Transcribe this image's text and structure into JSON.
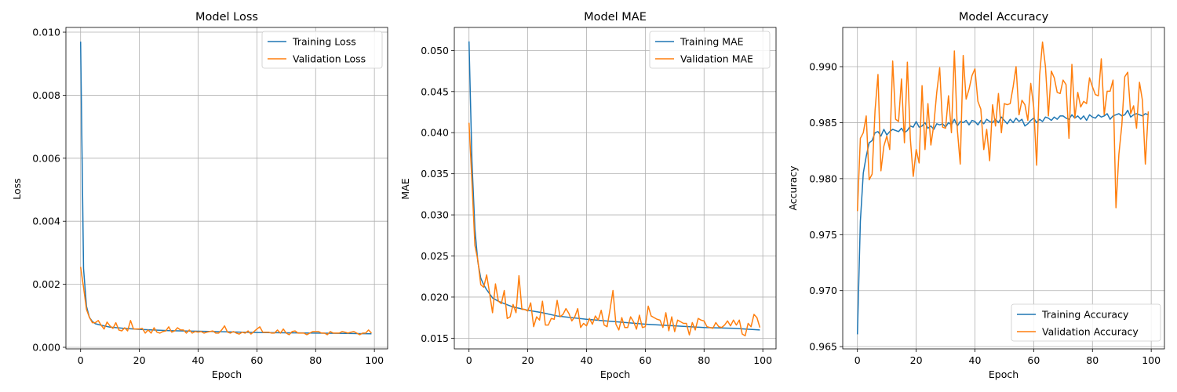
{
  "chart_data": [
    {
      "type": "line",
      "title": "Model Loss",
      "xlabel": "Epoch",
      "ylabel": "Loss",
      "xlim": [
        -5,
        104.5
      ],
      "ylim": [
        -5e-05,
        0.01015
      ],
      "xticks": [
        0,
        20,
        40,
        60,
        80,
        100
      ],
      "yticks": [
        0.0,
        0.002,
        0.004,
        0.006,
        0.008,
        0.01
      ],
      "xtick_labels": [
        "0",
        "20",
        "40",
        "60",
        "80",
        "100"
      ],
      "ytick_labels": [
        "0.000",
        "0.002",
        "0.004",
        "0.006",
        "0.008",
        "0.010"
      ],
      "grid": true,
      "legend_position": "upper right",
      "series": [
        {
          "name": "Training Loss",
          "color": "#1f77b4",
          "x": [
            0,
            1,
            2,
            3,
            4,
            5,
            7,
            10,
            15,
            20,
            30,
            40,
            50,
            60,
            70,
            80,
            90,
            99
          ],
          "y": [
            0.0097,
            0.0025,
            0.0013,
            0.00095,
            0.00082,
            0.00075,
            0.0007,
            0.00064,
            0.0006,
            0.00057,
            0.00053,
            0.00051,
            0.00049,
            0.00047,
            0.00046,
            0.00045,
            0.00044,
            0.00043
          ]
        },
        {
          "name": "Validation Loss",
          "color": "#ff7f0e",
          "x": [
            0,
            1,
            2,
            3,
            4,
            5,
            6,
            7,
            8,
            9,
            10,
            11,
            12,
            13,
            14,
            15,
            16,
            17,
            18,
            19,
            20,
            21,
            22,
            23,
            24,
            25,
            26,
            27,
            28,
            29,
            30,
            31,
            32,
            33,
            34,
            35,
            36,
            37,
            38,
            39,
            40,
            41,
            42,
            43,
            44,
            45,
            46,
            47,
            48,
            49,
            50,
            51,
            52,
            53,
            54,
            55,
            56,
            57,
            58,
            59,
            60,
            61,
            62,
            63,
            64,
            65,
            66,
            67,
            68,
            69,
            70,
            71,
            72,
            73,
            74,
            75,
            76,
            77,
            78,
            79,
            80,
            81,
            82,
            83,
            84,
            85,
            86,
            87,
            88,
            89,
            90,
            91,
            92,
            93,
            94,
            95,
            96,
            97,
            98,
            99
          ],
          "y": [
            0.00255,
            0.0019,
            0.0012,
            0.00095,
            0.00078,
            0.00078,
            0.00085,
            0.0007,
            0.00058,
            0.0008,
            0.00068,
            0.0006,
            0.00078,
            0.00055,
            0.00052,
            0.00062,
            0.00052,
            0.00085,
            0.00058,
            0.00058,
            0.00058,
            0.0006,
            0.00045,
            0.00055,
            0.00045,
            0.00062,
            0.00048,
            0.00045,
            0.0005,
            0.00052,
            0.00065,
            0.00048,
            0.00052,
            0.00062,
            0.00055,
            0.00055,
            0.00045,
            0.00055,
            0.00045,
            0.0005,
            0.00048,
            0.0005,
            0.00045,
            0.00048,
            0.0005,
            0.00052,
            0.00045,
            0.00045,
            0.00055,
            0.00068,
            0.00048,
            0.00045,
            0.0005,
            0.00045,
            0.00042,
            0.00048,
            0.00045,
            0.00052,
            0.00042,
            0.0005,
            0.00058,
            0.00065,
            0.00048,
            0.00048,
            0.00048,
            0.00045,
            0.00045,
            0.00055,
            0.00045,
            0.00058,
            0.00045,
            0.0004,
            0.0005,
            0.00052,
            0.00045,
            0.00045,
            0.00045,
            0.0004,
            0.00045,
            0.0005,
            0.0005,
            0.0005,
            0.00045,
            0.00045,
            0.0004,
            0.0005,
            0.00045,
            0.00045,
            0.00045,
            0.0005,
            0.00048,
            0.00045,
            0.00048,
            0.0005,
            0.00045,
            0.0004,
            0.00045,
            0.00045,
            0.00055,
            0.00045
          ]
        }
      ]
    },
    {
      "type": "line",
      "title": "Model MAE",
      "xlabel": "Epoch",
      "ylabel": "MAE",
      "xlim": [
        -5,
        104.5
      ],
      "ylim": [
        0.0137,
        0.0528
      ],
      "xticks": [
        0,
        20,
        40,
        60,
        80,
        100
      ],
      "yticks": [
        0.015,
        0.02,
        0.025,
        0.03,
        0.035,
        0.04,
        0.045,
        0.05
      ],
      "xtick_labels": [
        "0",
        "20",
        "40",
        "60",
        "80",
        "100"
      ],
      "ytick_labels": [
        "0.015",
        "0.020",
        "0.025",
        "0.030",
        "0.035",
        "0.040",
        "0.045",
        "0.050"
      ],
      "grid": true,
      "legend_position": "upper right",
      "series": [
        {
          "name": "Training MAE",
          "color": "#1f77b4",
          "x": [
            0,
            1,
            2,
            3,
            4,
            5,
            6,
            7,
            8,
            10,
            12,
            15,
            20,
            25,
            30,
            40,
            50,
            60,
            70,
            80,
            90,
            99
          ],
          "y": [
            0.0511,
            0.0365,
            0.0283,
            0.0243,
            0.0223,
            0.0215,
            0.0209,
            0.0204,
            0.0199,
            0.0195,
            0.0192,
            0.0188,
            0.0184,
            0.0181,
            0.0177,
            0.0173,
            0.017,
            0.0167,
            0.0165,
            0.0163,
            0.0162,
            0.016
          ]
        },
        {
          "name": "Validation MAE",
          "color": "#ff7f0e",
          "x": [
            0,
            1,
            2,
            3,
            4,
            5,
            6,
            7,
            8,
            9,
            10,
            11,
            12,
            13,
            14,
            15,
            16,
            17,
            18,
            19,
            20,
            21,
            22,
            23,
            24,
            25,
            26,
            27,
            28,
            29,
            30,
            31,
            32,
            33,
            34,
            35,
            36,
            37,
            38,
            39,
            40,
            41,
            42,
            43,
            44,
            45,
            46,
            47,
            48,
            49,
            50,
            51,
            52,
            53,
            54,
            55,
            56,
            57,
            58,
            59,
            60,
            61,
            62,
            63,
            64,
            65,
            66,
            67,
            68,
            69,
            70,
            71,
            72,
            73,
            74,
            75,
            76,
            77,
            78,
            79,
            80,
            81,
            82,
            83,
            84,
            85,
            86,
            87,
            88,
            89,
            90,
            91,
            92,
            93,
            94,
            95,
            96,
            97,
            98,
            99
          ],
          "y": [
            0.0412,
            0.034,
            0.0263,
            0.0245,
            0.0215,
            0.0212,
            0.0227,
            0.0205,
            0.0181,
            0.0216,
            0.0195,
            0.0192,
            0.0208,
            0.0174,
            0.0176,
            0.0191,
            0.0181,
            0.0226,
            0.0185,
            0.0185,
            0.0183,
            0.0193,
            0.0164,
            0.0176,
            0.0172,
            0.0195,
            0.0166,
            0.0166,
            0.0174,
            0.0173,
            0.0196,
            0.0176,
            0.0179,
            0.0186,
            0.018,
            0.0171,
            0.0176,
            0.0186,
            0.0163,
            0.0168,
            0.0165,
            0.0174,
            0.0167,
            0.0177,
            0.0172,
            0.0184,
            0.0166,
            0.0164,
            0.0185,
            0.0208,
            0.0167,
            0.016,
            0.0175,
            0.0163,
            0.0163,
            0.0176,
            0.017,
            0.0161,
            0.0178,
            0.0163,
            0.0164,
            0.0189,
            0.0177,
            0.0175,
            0.0173,
            0.0172,
            0.0163,
            0.0181,
            0.0159,
            0.0176,
            0.0158,
            0.0172,
            0.017,
            0.0168,
            0.0168,
            0.0154,
            0.0169,
            0.016,
            0.0174,
            0.0172,
            0.0171,
            0.0164,
            0.0163,
            0.0162,
            0.0169,
            0.0164,
            0.0163,
            0.0166,
            0.0171,
            0.0165,
            0.0172,
            0.0166,
            0.0172,
            0.0155,
            0.0153,
            0.0168,
            0.0164,
            0.0179,
            0.0175,
            0.0163
          ]
        }
      ]
    },
    {
      "type": "line",
      "title": "Model Accuracy",
      "xlabel": "Epoch",
      "ylabel": "Accuracy",
      "xlim": [
        -5,
        104.5
      ],
      "ylim": [
        0.9648,
        0.9935
      ],
      "xticks": [
        0,
        20,
        40,
        60,
        80,
        100
      ],
      "yticks": [
        0.965,
        0.97,
        0.975,
        0.98,
        0.985,
        0.99
      ],
      "xtick_labels": [
        "0",
        "20",
        "40",
        "60",
        "80",
        "100"
      ],
      "ytick_labels": [
        "0.965",
        "0.970",
        "0.975",
        "0.980",
        "0.985",
        "0.990"
      ],
      "grid": true,
      "legend_position": "lower right",
      "series": [
        {
          "name": "Training Accuracy",
          "color": "#1f77b4",
          "x": [
            0,
            1,
            2,
            3,
            4,
            5,
            6,
            7,
            8,
            9,
            10,
            11,
            12,
            13,
            14,
            15,
            16,
            17,
            18,
            19,
            20,
            21,
            22,
            23,
            24,
            25,
            26,
            27,
            28,
            29,
            30,
            31,
            32,
            33,
            34,
            35,
            36,
            37,
            38,
            39,
            40,
            41,
            42,
            43,
            44,
            45,
            46,
            47,
            48,
            49,
            50,
            51,
            52,
            53,
            54,
            55,
            56,
            57,
            58,
            59,
            60,
            61,
            62,
            63,
            64,
            65,
            66,
            67,
            68,
            69,
            70,
            71,
            72,
            73,
            74,
            75,
            76,
            77,
            78,
            79,
            80,
            81,
            82,
            83,
            84,
            85,
            86,
            87,
            88,
            89,
            90,
            91,
            92,
            93,
            94,
            95,
            96,
            97,
            98,
            99
          ],
          "y": [
            0.9661,
            0.9762,
            0.9805,
            0.982,
            0.9832,
            0.9834,
            0.9841,
            0.9842,
            0.9838,
            0.9844,
            0.9839,
            0.9842,
            0.9844,
            0.9843,
            0.9842,
            0.9845,
            0.9841,
            0.9843,
            0.9847,
            0.9846,
            0.9851,
            0.9846,
            0.9847,
            0.985,
            0.9845,
            0.9847,
            0.9844,
            0.9849,
            0.9848,
            0.9849,
            0.9846,
            0.985,
            0.9848,
            0.9853,
            0.9847,
            0.9851,
            0.985,
            0.9852,
            0.9848,
            0.9852,
            0.9851,
            0.9848,
            0.9852,
            0.9849,
            0.9853,
            0.9851,
            0.985,
            0.9853,
            0.985,
            0.9855,
            0.9852,
            0.9849,
            0.9853,
            0.985,
            0.9854,
            0.9851,
            0.9853,
            0.9847,
            0.9849,
            0.9852,
            0.9854,
            0.985,
            0.9853,
            0.9851,
            0.9855,
            0.9854,
            0.9852,
            0.9855,
            0.9853,
            0.9856,
            0.9856,
            0.9854,
            0.9853,
            0.9857,
            0.9854,
            0.9856,
            0.9853,
            0.9856,
            0.9852,
            0.9857,
            0.9855,
            0.9854,
            0.9857,
            0.9855,
            0.9856,
            0.9858,
            0.9853,
            0.9856,
            0.9857,
            0.9858,
            0.9856,
            0.9857,
            0.9861,
            0.9855,
            0.9857,
            0.9858,
            0.9857,
            0.9856,
            0.9858,
            0.9857
          ]
        },
        {
          "name": "Validation Accuracy",
          "color": "#ff7f0e",
          "x": [
            0,
            1,
            2,
            3,
            4,
            5,
            6,
            7,
            8,
            9,
            10,
            11,
            12,
            13,
            14,
            15,
            16,
            17,
            18,
            19,
            20,
            21,
            22,
            23,
            24,
            25,
            26,
            27,
            28,
            29,
            30,
            31,
            32,
            33,
            34,
            35,
            36,
            37,
            38,
            39,
            40,
            41,
            42,
            43,
            44,
            45,
            46,
            47,
            48,
            49,
            50,
            51,
            52,
            53,
            54,
            55,
            56,
            57,
            58,
            59,
            60,
            61,
            62,
            63,
            64,
            65,
            66,
            67,
            68,
            69,
            70,
            71,
            72,
            73,
            74,
            75,
            76,
            77,
            78,
            79,
            80,
            81,
            82,
            83,
            84,
            85,
            86,
            87,
            88,
            89,
            90,
            91,
            92,
            93,
            94,
            95,
            96,
            97,
            98,
            99
          ],
          "y": [
            0.9771,
            0.9836,
            0.9841,
            0.9856,
            0.9799,
            0.9804,
            0.9861,
            0.9893,
            0.9807,
            0.9829,
            0.9838,
            0.9826,
            0.9905,
            0.9853,
            0.9851,
            0.9889,
            0.9832,
            0.9904,
            0.9836,
            0.9802,
            0.9826,
            0.9814,
            0.9883,
            0.9826,
            0.9867,
            0.983,
            0.9848,
            0.9877,
            0.9899,
            0.9846,
            0.9845,
            0.9874,
            0.9841,
            0.9914,
            0.9844,
            0.9813,
            0.991,
            0.9871,
            0.988,
            0.9892,
            0.9898,
            0.9869,
            0.9862,
            0.9826,
            0.9844,
            0.9816,
            0.9866,
            0.9847,
            0.9876,
            0.9841,
            0.9867,
            0.9866,
            0.9867,
            0.9882,
            0.99,
            0.9857,
            0.987,
            0.9866,
            0.9852,
            0.9885,
            0.9864,
            0.9812,
            0.9892,
            0.9922,
            0.99,
            0.9856,
            0.9896,
            0.989,
            0.9877,
            0.9876,
            0.9888,
            0.9884,
            0.9836,
            0.9902,
            0.9854,
            0.9877,
            0.9864,
            0.9869,
            0.9867,
            0.989,
            0.9882,
            0.9875,
            0.9874,
            0.9907,
            0.9857,
            0.9878,
            0.9878,
            0.9888,
            0.9774,
            0.9822,
            0.9848,
            0.9891,
            0.9895,
            0.9858,
            0.9865,
            0.9845,
            0.9886,
            0.987,
            0.9813,
            0.986
          ]
        }
      ]
    }
  ]
}
